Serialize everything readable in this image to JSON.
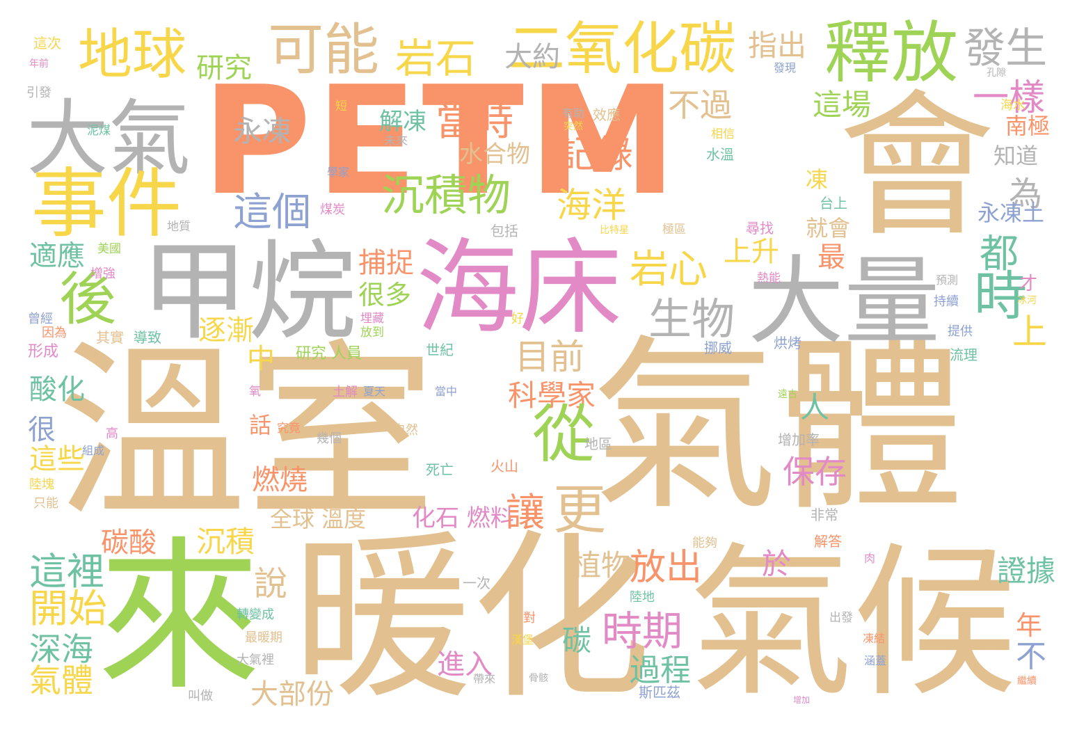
{
  "palette": {
    "tan": "#e2c08f",
    "orange": "#f9936a",
    "gray": "#b3b3b3",
    "green": "#9fd356",
    "yellow": "#f7d64a",
    "pink": "#e28ac6",
    "blue": "#8da2d1",
    "teal": "#6ec2a3"
  },
  "words": [
    {
      "text": "PETM",
      "color": "orange"
    },
    {
      "text": "溫室",
      "color": "tan"
    },
    {
      "text": "氣體",
      "color": "tan"
    },
    {
      "text": "暖化",
      "color": "tan"
    },
    {
      "text": "氣候",
      "color": "tan"
    },
    {
      "text": "會",
      "color": "tan"
    },
    {
      "text": "來",
      "color": "green"
    },
    {
      "text": "甲烷",
      "color": "gray"
    },
    {
      "text": "海床",
      "color": "pink"
    },
    {
      "text": "大量",
      "color": "gray"
    },
    {
      "text": "大氣",
      "color": "gray"
    },
    {
      "text": "事件",
      "color": "yellow"
    },
    {
      "text": "地球",
      "color": "yellow"
    },
    {
      "text": "可能",
      "color": "tan"
    },
    {
      "text": "二氧化碳",
      "color": "yellow"
    },
    {
      "text": "釋放",
      "color": "green"
    },
    {
      "text": "發生",
      "color": "gray"
    },
    {
      "text": "岩石",
      "color": "yellow"
    },
    {
      "text": "研究",
      "color": "green"
    },
    {
      "text": "大約",
      "color": "gray"
    },
    {
      "text": "指出",
      "color": "tan"
    },
    {
      "text": "一樣",
      "color": "pink"
    },
    {
      "text": "這場",
      "color": "green"
    },
    {
      "text": "南極",
      "color": "orange"
    },
    {
      "text": "知道",
      "color": "gray"
    },
    {
      "text": "當時",
      "color": "orange"
    },
    {
      "text": "不過",
      "color": "tan"
    },
    {
      "text": "永凍",
      "color": "gray"
    },
    {
      "text": "解凍",
      "color": "teal"
    },
    {
      "text": "水合物",
      "color": "tan"
    },
    {
      "text": "記錄",
      "color": "orange"
    },
    {
      "text": "沉積物",
      "color": "green"
    },
    {
      "text": "這個",
      "color": "blue"
    },
    {
      "text": "海洋",
      "color": "yellow"
    },
    {
      "text": "為",
      "color": "gray"
    },
    {
      "text": "凍",
      "color": "yellow"
    },
    {
      "text": "永凍土",
      "color": "blue"
    },
    {
      "text": "就會",
      "color": "tan"
    },
    {
      "text": "後",
      "color": "green"
    },
    {
      "text": "岩心",
      "color": "yellow"
    },
    {
      "text": "上升",
      "color": "yellow"
    },
    {
      "text": "都",
      "color": "teal"
    },
    {
      "text": "時",
      "color": "teal"
    },
    {
      "text": "生物",
      "color": "gray"
    },
    {
      "text": "適應",
      "color": "teal"
    },
    {
      "text": "捕捉",
      "color": "orange"
    },
    {
      "text": "最",
      "color": "orange"
    },
    {
      "text": "很多",
      "color": "green"
    },
    {
      "text": "目前",
      "color": "tan"
    },
    {
      "text": "逐漸",
      "color": "yellow"
    },
    {
      "text": "上",
      "color": "yellow"
    },
    {
      "text": "中",
      "color": "yellow"
    },
    {
      "text": "酸化",
      "color": "teal"
    },
    {
      "text": "科學家",
      "color": "orange"
    },
    {
      "text": "人",
      "color": "teal"
    },
    {
      "text": "從",
      "color": "green"
    },
    {
      "text": "很",
      "color": "blue"
    },
    {
      "text": "話",
      "color": "orange"
    },
    {
      "text": "保存",
      "color": "pink"
    },
    {
      "text": "這些",
      "color": "yellow"
    },
    {
      "text": "燃燒",
      "color": "orange"
    },
    {
      "text": "全球 溫度",
      "color": "tan"
    },
    {
      "text": "化石 燃料",
      "color": "pink"
    },
    {
      "text": "讓",
      "color": "orange"
    },
    {
      "text": "更",
      "color": "tan"
    },
    {
      "text": "碳酸",
      "color": "orange"
    },
    {
      "text": "沉積",
      "color": "yellow"
    },
    {
      "text": "這裡",
      "color": "teal"
    },
    {
      "text": "說",
      "color": "tan"
    },
    {
      "text": "植物",
      "color": "tan"
    },
    {
      "text": "放出",
      "color": "orange"
    },
    {
      "text": "於",
      "color": "pink"
    },
    {
      "text": "證據",
      "color": "teal"
    },
    {
      "text": "開始",
      "color": "yellow"
    },
    {
      "text": "時期",
      "color": "pink"
    },
    {
      "text": "碳",
      "color": "teal"
    },
    {
      "text": "年",
      "color": "orange"
    },
    {
      "text": "深海",
      "color": "teal"
    },
    {
      "text": "過程",
      "color": "teal"
    },
    {
      "text": "不",
      "color": "blue"
    },
    {
      "text": "進入",
      "color": "pink"
    },
    {
      "text": "氣體",
      "color": "yellow"
    },
    {
      "text": "大部份",
      "color": "tan"
    },
    {
      "text": "研究 人員",
      "color": "green"
    },
    {
      "text": "世紀",
      "color": "teal"
    },
    {
      "text": "形成",
      "color": "pink"
    },
    {
      "text": "其實",
      "color": "tan"
    },
    {
      "text": "導致",
      "color": "teal"
    },
    {
      "text": "因為",
      "color": "orange"
    },
    {
      "text": "曾經",
      "color": "blue"
    },
    {
      "text": "增強",
      "color": "pink"
    },
    {
      "text": "美國",
      "color": "green"
    },
    {
      "text": "地質",
      "color": "gray"
    },
    {
      "text": "包括",
      "color": "gray"
    },
    {
      "text": "比特星",
      "color": "yellow"
    },
    {
      "text": "極區",
      "color": "tan"
    },
    {
      "text": "煤炭",
      "color": "pink"
    },
    {
      "text": "學家",
      "color": "blue"
    },
    {
      "text": "尋找",
      "color": "pink"
    },
    {
      "text": "台上",
      "color": "teal"
    },
    {
      "text": "水溫",
      "color": "teal"
    },
    {
      "text": "相信",
      "color": "yellow"
    },
    {
      "text": "效應",
      "color": "tan"
    },
    {
      "text": "有助",
      "color": "gray"
    },
    {
      "text": "突然",
      "color": "yellow"
    },
    {
      "text": "海水",
      "color": "yellow"
    },
    {
      "text": "未來",
      "color": "gray"
    },
    {
      "text": "短",
      "color": "yellow"
    },
    {
      "text": "泥煤",
      "color": "teal"
    },
    {
      "text": "引發",
      "color": "gray"
    },
    {
      "text": "年前",
      "color": "pink"
    },
    {
      "text": "這次",
      "color": "yellow"
    },
    {
      "text": "發現",
      "color": "blue"
    },
    {
      "text": "孔隙",
      "color": "gray"
    },
    {
      "text": "熱能",
      "color": "pink"
    },
    {
      "text": "持續",
      "color": "blue"
    },
    {
      "text": "提供",
      "color": "blue"
    },
    {
      "text": "烘烤",
      "color": "blue"
    },
    {
      "text": "挪威",
      "color": "blue"
    },
    {
      "text": "流理",
      "color": "teal"
    },
    {
      "text": "埋藏",
      "color": "pink"
    },
    {
      "text": "放到",
      "color": "green"
    },
    {
      "text": "好",
      "color": "yellow"
    },
    {
      "text": "氧",
      "color": "pink"
    },
    {
      "text": "土解",
      "color": "pink"
    },
    {
      "text": "夏天",
      "color": "blue"
    },
    {
      "text": "當中",
      "color": "blue"
    },
    {
      "text": "幾個",
      "color": "gray"
    },
    {
      "text": "自然",
      "color": "tan"
    },
    {
      "text": "究竟",
      "color": "orange"
    },
    {
      "text": "組成",
      "color": "blue"
    },
    {
      "text": "高",
      "color": "pink"
    },
    {
      "text": "陸塊",
      "color": "yellow"
    },
    {
      "text": "只能",
      "color": "tan"
    },
    {
      "text": "死亡",
      "color": "teal"
    },
    {
      "text": "火山",
      "color": "orange"
    },
    {
      "text": "地區",
      "color": "gray"
    },
    {
      "text": "增加率",
      "color": "gray"
    },
    {
      "text": "遠古",
      "color": "green"
    },
    {
      "text": "非常",
      "color": "gray"
    },
    {
      "text": "解答",
      "color": "orange"
    },
    {
      "text": "能夠",
      "color": "tan"
    },
    {
      "text": "一次",
      "color": "gray"
    },
    {
      "text": "陸地",
      "color": "teal"
    },
    {
      "text": "對",
      "color": "orange"
    },
    {
      "text": "轉變成",
      "color": "teal"
    },
    {
      "text": "最暖期",
      "color": "tan"
    },
    {
      "text": "大氣裡",
      "color": "gray"
    },
    {
      "text": "叫做",
      "color": "gray"
    },
    {
      "text": "斯匹茲",
      "color": "blue"
    },
    {
      "text": "出發",
      "color": "gray"
    },
    {
      "text": "凍結",
      "color": "orange"
    },
    {
      "text": "涵蓋",
      "color": "blue"
    },
    {
      "text": "繼續",
      "color": "orange"
    },
    {
      "text": "增加",
      "color": "pink"
    },
    {
      "text": "才",
      "color": "pink"
    },
    {
      "text": "肉",
      "color": "pink"
    },
    {
      "text": "冰河",
      "color": "yellow"
    },
    {
      "text": "預測",
      "color": "gray"
    },
    {
      "text": "帶來",
      "color": "gray"
    },
    {
      "text": "骨骸",
      "color": "gray"
    },
    {
      "text": "漢堡",
      "color": "yellow"
    }
  ]
}
